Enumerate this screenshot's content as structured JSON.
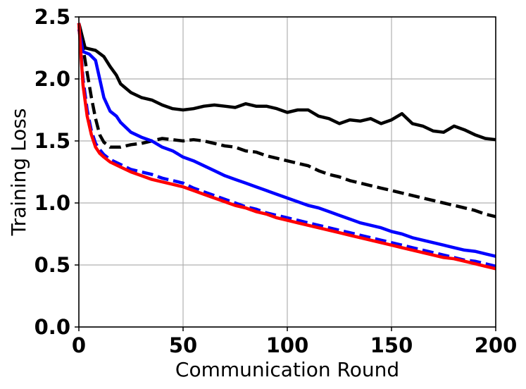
{
  "chart_data": {
    "type": "line",
    "title": "",
    "xlabel": "Communication Round",
    "ylabel": "Training Loss",
    "xlim": [
      0,
      200
    ],
    "ylim": [
      0,
      2.5
    ],
    "xticks": [
      0,
      50,
      100,
      150,
      200
    ],
    "xtick_labels": [
      "0",
      "50",
      "100",
      "150",
      "200"
    ],
    "yticks": [
      0,
      0.5,
      1.0,
      1.5,
      2.0,
      2.5
    ],
    "ytick_labels": [
      "0.0",
      "0.5",
      "1.0",
      "1.5",
      "2.0",
      "2.5"
    ],
    "grid": true,
    "legend": "none",
    "series": [
      {
        "color": "#000000",
        "style": "solid",
        "x": [
          0,
          3,
          8,
          12,
          15,
          18,
          20,
          25,
          30,
          35,
          40,
          45,
          50,
          55,
          60,
          65,
          70,
          75,
          80,
          85,
          90,
          95,
          100,
          105,
          110,
          115,
          120,
          125,
          130,
          135,
          140,
          145,
          150,
          155,
          160,
          165,
          170,
          175,
          180,
          185,
          190,
          195,
          200
        ],
        "y": [
          2.45,
          2.25,
          2.23,
          2.18,
          2.1,
          2.03,
          1.96,
          1.89,
          1.85,
          1.83,
          1.79,
          1.76,
          1.75,
          1.76,
          1.78,
          1.79,
          1.78,
          1.77,
          1.8,
          1.78,
          1.78,
          1.76,
          1.73,
          1.75,
          1.75,
          1.7,
          1.68,
          1.64,
          1.67,
          1.66,
          1.68,
          1.64,
          1.67,
          1.72,
          1.64,
          1.62,
          1.58,
          1.57,
          1.62,
          1.59,
          1.55,
          1.52,
          1.51
        ]
      },
      {
        "color": "#000000",
        "style": "dashed",
        "x": [
          0,
          2,
          4,
          6,
          8,
          10,
          12,
          15,
          20,
          25,
          30,
          35,
          40,
          45,
          50,
          55,
          60,
          65,
          70,
          75,
          80,
          85,
          90,
          95,
          100,
          105,
          110,
          115,
          120,
          125,
          130,
          135,
          140,
          145,
          150,
          155,
          160,
          165,
          170,
          175,
          180,
          185,
          190,
          195,
          200
        ],
        "y": [
          2.45,
          2.25,
          2.05,
          1.85,
          1.68,
          1.55,
          1.49,
          1.45,
          1.45,
          1.47,
          1.48,
          1.5,
          1.52,
          1.51,
          1.5,
          1.51,
          1.5,
          1.48,
          1.46,
          1.45,
          1.42,
          1.41,
          1.38,
          1.36,
          1.34,
          1.32,
          1.3,
          1.26,
          1.23,
          1.21,
          1.18,
          1.16,
          1.14,
          1.12,
          1.1,
          1.08,
          1.06,
          1.04,
          1.02,
          1.0,
          0.98,
          0.96,
          0.94,
          0.91,
          0.89
        ]
      },
      {
        "color": "#0000ff",
        "style": "solid",
        "x": [
          0,
          2,
          5,
          8,
          10,
          12,
          15,
          18,
          20,
          25,
          30,
          35,
          40,
          45,
          50,
          55,
          60,
          65,
          70,
          75,
          80,
          85,
          90,
          95,
          100,
          105,
          110,
          115,
          120,
          125,
          130,
          135,
          140,
          145,
          150,
          155,
          160,
          165,
          170,
          175,
          180,
          185,
          190,
          195,
          200
        ],
        "y": [
          2.4,
          2.22,
          2.2,
          2.15,
          2.0,
          1.85,
          1.74,
          1.7,
          1.65,
          1.57,
          1.53,
          1.5,
          1.45,
          1.42,
          1.37,
          1.34,
          1.3,
          1.26,
          1.22,
          1.19,
          1.16,
          1.13,
          1.1,
          1.07,
          1.04,
          1.01,
          0.98,
          0.96,
          0.93,
          0.9,
          0.87,
          0.84,
          0.82,
          0.8,
          0.77,
          0.75,
          0.72,
          0.7,
          0.68,
          0.66,
          0.64,
          0.62,
          0.61,
          0.59,
          0.57
        ]
      },
      {
        "color": "#0000ff",
        "style": "dashed",
        "x": [
          0,
          2,
          4,
          6,
          8,
          10,
          12,
          15,
          20,
          25,
          30,
          35,
          40,
          45,
          50,
          55,
          60,
          65,
          70,
          75,
          80,
          85,
          90,
          95,
          100,
          105,
          110,
          115,
          120,
          125,
          130,
          135,
          140,
          145,
          150,
          155,
          160,
          165,
          170,
          175,
          180,
          185,
          190,
          195,
          200
        ],
        "y": [
          2.45,
          2.0,
          1.75,
          1.58,
          1.48,
          1.43,
          1.39,
          1.35,
          1.31,
          1.27,
          1.25,
          1.23,
          1.2,
          1.18,
          1.16,
          1.12,
          1.09,
          1.06,
          1.03,
          1.0,
          0.97,
          0.95,
          0.92,
          0.9,
          0.88,
          0.86,
          0.84,
          0.82,
          0.8,
          0.78,
          0.76,
          0.74,
          0.72,
          0.7,
          0.68,
          0.66,
          0.64,
          0.62,
          0.6,
          0.58,
          0.56,
          0.54,
          0.53,
          0.51,
          0.49
        ]
      },
      {
        "color": "#ff0000",
        "style": "solid",
        "x": [
          0,
          2,
          4,
          6,
          8,
          10,
          12,
          15,
          20,
          25,
          30,
          35,
          40,
          45,
          50,
          55,
          60,
          65,
          70,
          75,
          80,
          85,
          90,
          95,
          100,
          105,
          110,
          115,
          120,
          125,
          130,
          135,
          140,
          145,
          150,
          155,
          160,
          165,
          170,
          175,
          180,
          185,
          190,
          195,
          200
        ],
        "y": [
          2.45,
          1.95,
          1.7,
          1.55,
          1.45,
          1.4,
          1.37,
          1.33,
          1.29,
          1.25,
          1.22,
          1.19,
          1.17,
          1.15,
          1.13,
          1.1,
          1.07,
          1.04,
          1.01,
          0.98,
          0.96,
          0.93,
          0.91,
          0.88,
          0.86,
          0.84,
          0.82,
          0.8,
          0.78,
          0.76,
          0.74,
          0.72,
          0.7,
          0.68,
          0.66,
          0.64,
          0.62,
          0.6,
          0.58,
          0.56,
          0.55,
          0.53,
          0.51,
          0.49,
          0.47
        ]
      }
    ]
  }
}
